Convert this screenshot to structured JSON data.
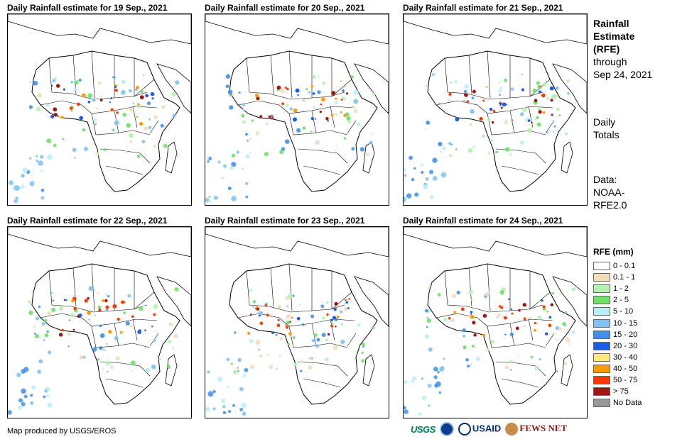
{
  "panels": [
    {
      "title": "Daily Rainfall estimate for 19 Sep., 2021"
    },
    {
      "title": "Daily Rainfall estimate for 20 Sep., 2021"
    },
    {
      "title": "Daily Rainfall estimate for 21 Sep., 2021"
    },
    {
      "title": "Daily Rainfall estimate for 22 Sep., 2021"
    },
    {
      "title": "Daily Rainfall estimate for 23 Sep., 2021"
    },
    {
      "title": "Daily Rainfall estimate for 24 Sep., 2021"
    }
  ],
  "side": {
    "title1": "Rainfall",
    "title2": "Estimate",
    "title3": "(RFE)",
    "through1": "through",
    "through2": "Sep 24, 2021",
    "daily1": "Daily",
    "daily2": "Totals",
    "data1": "Data:",
    "data2": "NOAA-",
    "data3": "RFE2.0"
  },
  "legend": {
    "title": "RFE (mm)",
    "items": [
      {
        "label": "0 - 0.1",
        "color": "#ffffff"
      },
      {
        "label": "0.1 - 1",
        "color": "#f2ddb9"
      },
      {
        "label": "1 - 2",
        "color": "#b5f2b0"
      },
      {
        "label": "2 - 5",
        "color": "#6fe06a"
      },
      {
        "label": "5 - 10",
        "color": "#b9eef5"
      },
      {
        "label": "10 - 15",
        "color": "#7fc2f2"
      },
      {
        "label": "15 - 20",
        "color": "#3f8fe8"
      },
      {
        "label": "20 - 30",
        "color": "#1c5ce6"
      },
      {
        "label": "30 - 40",
        "color": "#ffe680"
      },
      {
        "label": "40 - 50",
        "color": "#ff9a00"
      },
      {
        "label": "50 - 75",
        "color": "#ff3a00"
      },
      {
        "label": "> 75",
        "color": "#a01414"
      },
      {
        "label": "No Data",
        "color": "#999999"
      }
    ]
  },
  "credit": "Map produced by USGS/EROS",
  "logos": {
    "usgs": "USGS",
    "usaid": "USAID",
    "fews": "FEWS NET"
  }
}
